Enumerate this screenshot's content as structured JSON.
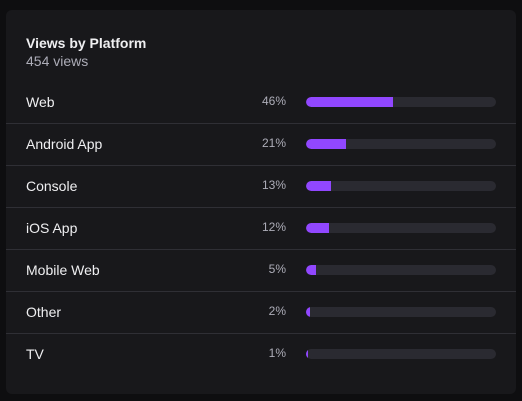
{
  "panel": {
    "title": "Views by Platform",
    "subtitle": "454 views",
    "accent_color": "#9147ff"
  },
  "platforms": [
    {
      "label": "Web",
      "percent_text": "46%",
      "percent": 46
    },
    {
      "label": "Android App",
      "percent_text": "21%",
      "percent": 21
    },
    {
      "label": "Console",
      "percent_text": "13%",
      "percent": 13
    },
    {
      "label": "iOS App",
      "percent_text": "12%",
      "percent": 12
    },
    {
      "label": "Mobile Web",
      "percent_text": "5%",
      "percent": 5
    },
    {
      "label": "Other",
      "percent_text": "2%",
      "percent": 2
    },
    {
      "label": "TV",
      "percent_text": "1%",
      "percent": 1
    }
  ]
}
